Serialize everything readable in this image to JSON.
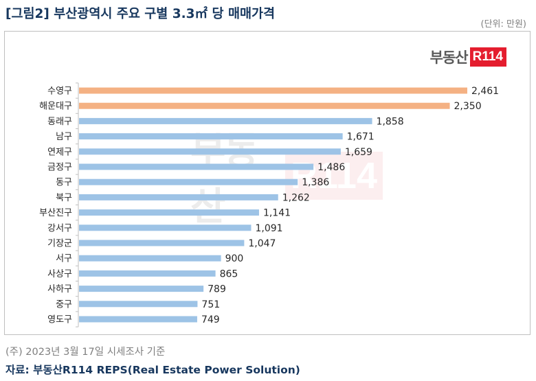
{
  "header": {
    "title": "[그림2] 부산광역시 주요 구별 3.3㎡ 당 매매가격",
    "unit": "(단위: 만원)"
  },
  "logo": {
    "text": "부동산",
    "badge": "R114"
  },
  "footer": {
    "note": "(주) 2023년 3월 17일 시세조사 기준",
    "source": "자료: 부동산R114 REPS(Real Estate Power Solution)"
  },
  "colors": {
    "highlight": "#f4b183",
    "bar": "#9dc3e6",
    "title": "#17375e"
  },
  "chart_data": {
    "type": "bar",
    "orientation": "horizontal",
    "title": "부산광역시 주요 구별 3.3㎡ 당 매매가격",
    "unit": "만원",
    "categories": [
      "수영구",
      "해운대구",
      "동래구",
      "남구",
      "연제구",
      "금정구",
      "동구",
      "북구",
      "부산진구",
      "강서구",
      "기장군",
      "서구",
      "사상구",
      "사하구",
      "중구",
      "영도구"
    ],
    "values": [
      2461,
      2350,
      1858,
      1671,
      1659,
      1486,
      1386,
      1262,
      1141,
      1091,
      1047,
      900,
      865,
      789,
      751,
      749
    ],
    "value_labels": [
      "2,461",
      "2,350",
      "1,858",
      "1,671",
      "1,659",
      "1,486",
      "1,386",
      "1,262",
      "1,141",
      "1,091",
      "1,047",
      "900",
      "865",
      "789",
      "751",
      "749"
    ],
    "highlighted": [
      "수영구",
      "해운대구"
    ],
    "xlim": [
      0,
      2461
    ],
    "grid": false,
    "legend": "none"
  }
}
